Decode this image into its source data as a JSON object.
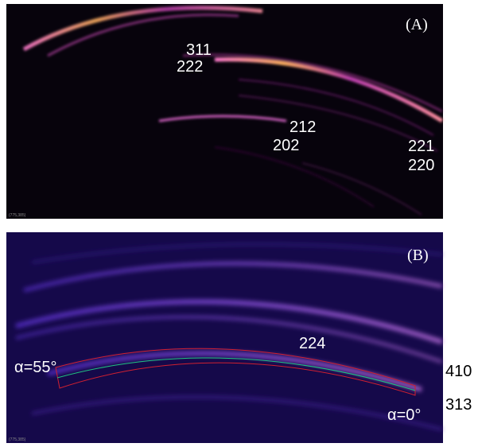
{
  "panels": [
    {
      "label": "(A)",
      "annotations": [
        "311",
        "222",
        "212",
        "202",
        "221",
        "220"
      ],
      "corner_text": "(775,385)"
    },
    {
      "label": "(B)",
      "annotations": [
        "224",
        "410",
        "313"
      ],
      "angle_labels": [
        "α=55°",
        "α=0°"
      ],
      "corner_text": "(775,385)"
    }
  ]
}
